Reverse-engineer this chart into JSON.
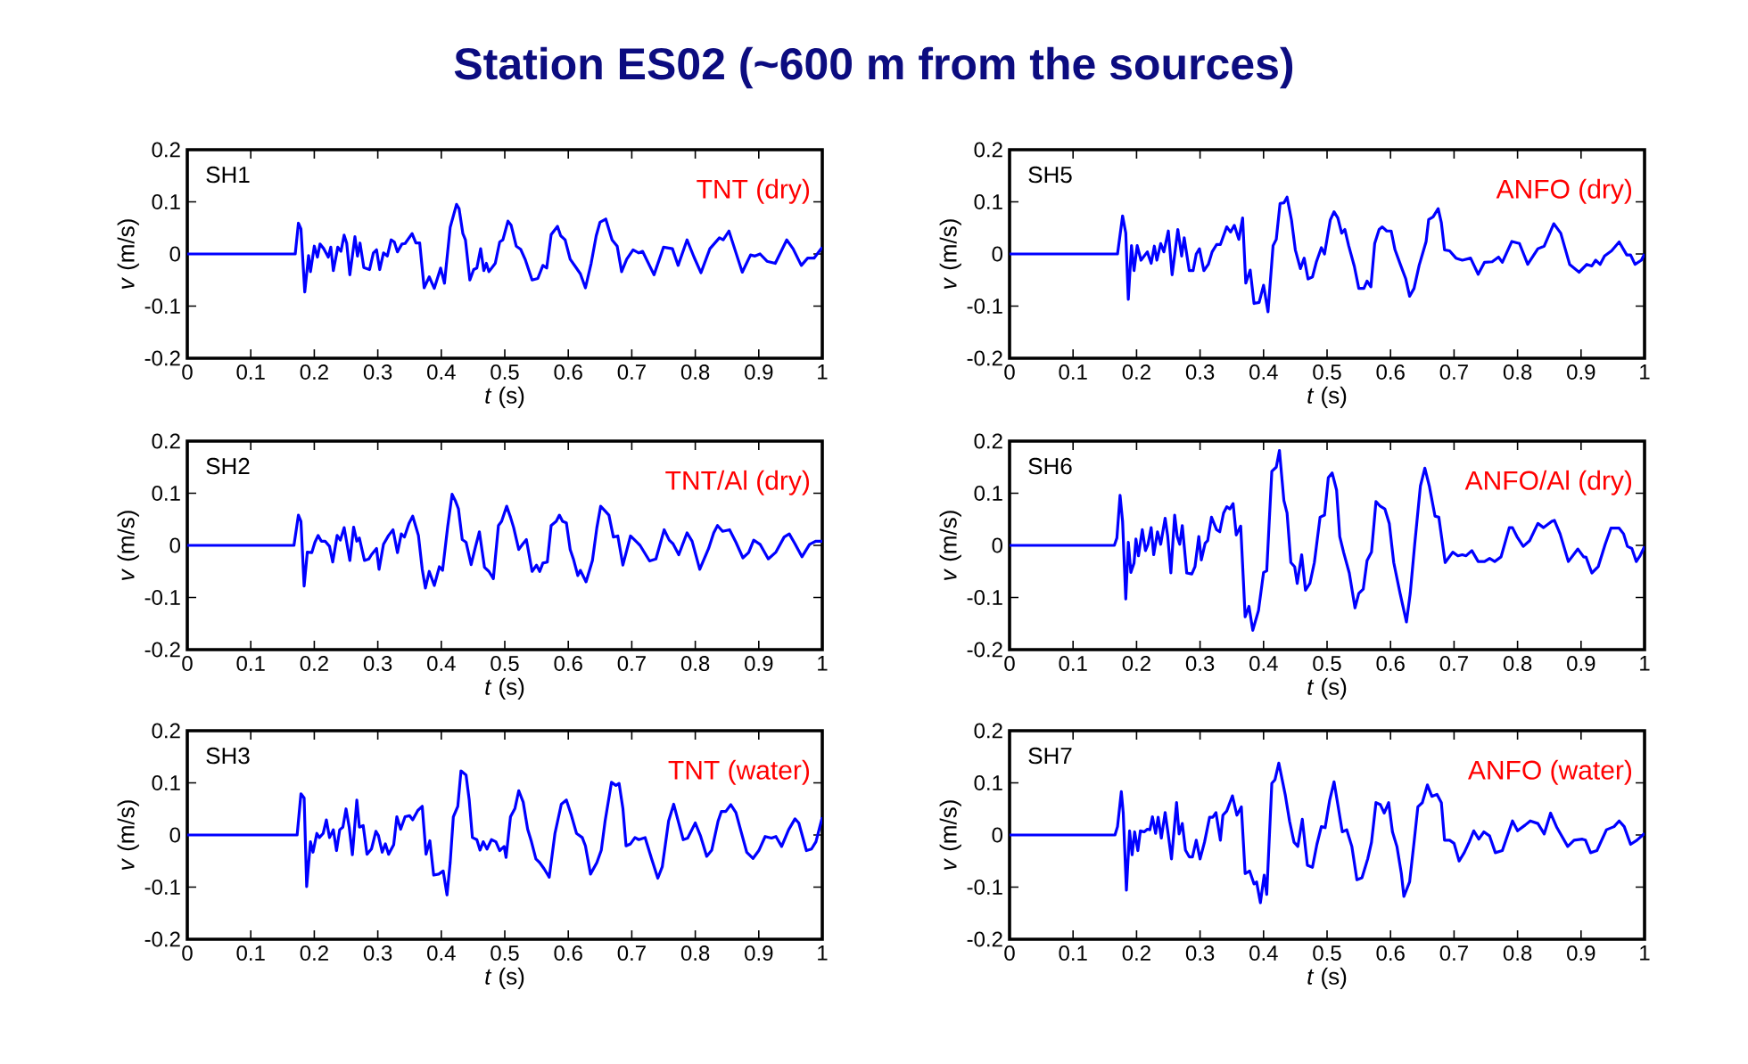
{
  "chart_data": [
    {
      "type": "other",
      "title": "Station ES02 (~600 m from the sources)"
    },
    {
      "type": "line",
      "xlabel": "*t* (s)",
      "ylabel": "*v* (m/s)",
      "annotations": [
        "SH1",
        "TNT (dry)"
      ],
      "xlim": [
        0,
        1
      ],
      "ylim": [
        -0.2,
        0.2
      ],
      "xticks": [
        0,
        0.1,
        0.2,
        0.3,
        0.4,
        0.5,
        0.6,
        0.7,
        0.8,
        0.9,
        1
      ],
      "yticks": [
        -0.2,
        -0.1,
        0,
        0.1,
        0.2
      ],
      "series": [
        {
          "color": "#0000ff",
          "x": [
            0,
            0.17,
            0.175,
            0.179,
            0.185,
            0.191,
            0.194,
            0.2,
            0.205,
            0.209,
            0.215,
            0.222,
            0.226,
            0.23,
            0.237,
            0.242,
            0.247,
            0.251,
            0.256,
            0.264,
            0.268,
            0.272,
            0.278,
            0.287,
            0.293,
            0.298,
            0.303,
            0.309,
            0.315,
            0.321,
            0.326,
            0.331,
            0.338,
            0.343,
            0.354,
            0.36,
            0.366,
            0.373,
            0.381,
            0.389,
            0.399,
            0.405,
            0.414,
            0.424,
            0.428,
            0.434,
            0.438,
            0.445,
            0.451,
            0.456,
            0.462,
            0.467,
            0.471,
            0.475,
            0.485,
            0.492,
            0.497,
            0.505,
            0.51,
            0.518,
            0.525,
            0.532,
            0.543,
            0.552,
            0.56,
            0.566,
            0.573,
            0.583,
            0.588,
            0.595,
            0.603,
            0.611,
            0.619,
            0.627,
            0.636,
            0.644,
            0.65,
            0.659,
            0.669,
            0.677,
            0.684,
            0.692,
            0.702,
            0.711,
            0.717,
            0.735,
            0.75,
            0.764,
            0.773,
            0.787,
            0.798,
            0.809,
            0.823,
            0.838,
            0.844,
            0.853,
            0.862,
            0.874,
            0.887,
            0.894,
            0.902,
            0.913,
            0.926,
            0.944,
            0.954,
            0.967,
            0.977,
            0.987,
            1.0
          ],
          "values": [
            0,
            0,
            0.059,
            0.048,
            -0.073,
            -0.003,
            -0.034,
            0.015,
            -0.006,
            0.019,
            0.01,
            -0.006,
            0.013,
            -0.032,
            0.013,
            0.005,
            0.036,
            0.021,
            -0.04,
            0.033,
            -0.004,
            0.021,
            -0.026,
            -0.03,
            0.002,
            0.008,
            -0.03,
            0.002,
            -0.004,
            0.027,
            0.023,
            0.004,
            0.019,
            0.02,
            0.039,
            0.021,
            0.021,
            -0.065,
            -0.044,
            -0.066,
            -0.027,
            -0.056,
            0.051,
            0.095,
            0.087,
            0.039,
            0.027,
            -0.05,
            -0.03,
            -0.027,
            0.01,
            -0.032,
            -0.018,
            -0.034,
            -0.018,
            0.023,
            0.027,
            0.063,
            0.055,
            0.015,
            0.009,
            -0.01,
            -0.05,
            -0.047,
            -0.022,
            -0.027,
            0.037,
            0.053,
            0.035,
            0.027,
            -0.01,
            -0.024,
            -0.038,
            -0.065,
            -0.018,
            0.035,
            0.061,
            0.067,
            0.027,
            0.015,
            -0.034,
            -0.01,
            0.008,
            0.002,
            0.005,
            -0.04,
            0.013,
            0.01,
            -0.022,
            0.027,
            -0.006,
            -0.036,
            0.01,
            0.031,
            0.027,
            0.044,
            0.01,
            -0.035,
            -0.002,
            -0.004,
            0.0,
            -0.014,
            -0.018,
            0.027,
            0.01,
            -0.022,
            -0.008,
            -0.008,
            0.013
          ]
        }
      ]
    },
    {
      "type": "line",
      "xlabel": "*t* (s)",
      "ylabel": "*v* (m/s)",
      "annotations": [
        "SH5",
        "ANFO (dry)"
      ],
      "xlim": [
        0,
        1
      ],
      "ylim": [
        -0.2,
        0.2
      ],
      "xticks": [
        0,
        0.1,
        0.2,
        0.3,
        0.4,
        0.5,
        0.6,
        0.7,
        0.8,
        0.9,
        1
      ],
      "yticks": [
        -0.2,
        -0.1,
        0,
        0.1,
        0.2
      ],
      "series": [
        {
          "color": "#0000ff",
          "x": [
            0,
            0.17,
            0.178,
            0.183,
            0.187,
            0.192,
            0.196,
            0.201,
            0.207,
            0.217,
            0.223,
            0.228,
            0.232,
            0.238,
            0.243,
            0.25,
            0.256,
            0.265,
            0.271,
            0.275,
            0.283,
            0.289,
            0.294,
            0.299,
            0.306,
            0.313,
            0.319,
            0.326,
            0.332,
            0.342,
            0.348,
            0.354,
            0.361,
            0.367,
            0.372,
            0.379,
            0.385,
            0.393,
            0.4,
            0.407,
            0.415,
            0.42,
            0.426,
            0.432,
            0.437,
            0.444,
            0.45,
            0.458,
            0.464,
            0.47,
            0.477,
            0.483,
            0.491,
            0.496,
            0.505,
            0.511,
            0.517,
            0.523,
            0.528,
            0.534,
            0.543,
            0.55,
            0.558,
            0.563,
            0.569,
            0.575,
            0.582,
            0.587,
            0.594,
            0.601,
            0.607,
            0.616,
            0.624,
            0.63,
            0.637,
            0.645,
            0.656,
            0.66,
            0.667,
            0.675,
            0.68,
            0.685,
            0.693,
            0.703,
            0.713,
            0.726,
            0.738,
            0.748,
            0.76,
            0.77,
            0.776,
            0.791,
            0.803,
            0.816,
            0.832,
            0.842,
            0.857,
            0.868,
            0.882,
            0.897,
            0.909,
            0.917,
            0.923,
            0.93,
            0.937,
            0.948,
            0.96,
            0.972,
            0.978,
            0.985,
            0.995,
            1.0
          ],
          "values": [
            0,
            0,
            0.073,
            0.04,
            -0.087,
            0.016,
            -0.032,
            0.016,
            -0.012,
            0.004,
            -0.018,
            0.015,
            -0.012,
            0.02,
            0.004,
            0.044,
            -0.04,
            0.047,
            -0.004,
            0.031,
            -0.032,
            -0.032,
            0.0,
            0.01,
            -0.032,
            -0.02,
            0.004,
            0.018,
            0.018,
            0.052,
            0.042,
            0.055,
            0.028,
            0.069,
            -0.056,
            -0.031,
            -0.095,
            -0.093,
            -0.06,
            -0.111,
            0.016,
            0.028,
            0.097,
            0.098,
            0.109,
            0.065,
            0.008,
            -0.028,
            -0.008,
            -0.048,
            -0.044,
            -0.016,
            0.012,
            0.0,
            0.065,
            0.081,
            0.069,
            0.04,
            0.047,
            0.016,
            -0.024,
            -0.066,
            -0.066,
            -0.052,
            -0.063,
            0.02,
            0.047,
            0.052,
            0.044,
            0.044,
            0.008,
            -0.022,
            -0.048,
            -0.081,
            -0.066,
            -0.022,
            0.024,
            0.066,
            0.071,
            0.087,
            0.06,
            0.008,
            0.006,
            -0.008,
            -0.012,
            -0.008,
            -0.039,
            -0.016,
            -0.015,
            -0.006,
            -0.016,
            0.024,
            0.02,
            -0.02,
            0.01,
            0.015,
            0.058,
            0.04,
            -0.02,
            -0.035,
            -0.02,
            -0.023,
            -0.012,
            -0.02,
            -0.004,
            0.006,
            0.023,
            -0.002,
            -0.002,
            -0.02,
            -0.012,
            0.0
          ]
        }
      ]
    },
    {
      "type": "line",
      "xlabel": "*t* (s)",
      "ylabel": "*v* (m/s)",
      "annotations": [
        "SH2",
        "TNT/Al (dry)"
      ],
      "xlim": [
        0,
        1
      ],
      "ylim": [
        -0.2,
        0.2
      ],
      "xticks": [
        0,
        0.1,
        0.2,
        0.3,
        0.4,
        0.5,
        0.6,
        0.7,
        0.8,
        0.9,
        1
      ],
      "yticks": [
        -0.2,
        -0.1,
        0,
        0.1,
        0.2
      ],
      "series": [
        {
          "color": "#0000ff",
          "x": [
            0,
            0.168,
            0.175,
            0.179,
            0.184,
            0.189,
            0.196,
            0.201,
            0.206,
            0.211,
            0.217,
            0.224,
            0.229,
            0.236,
            0.241,
            0.247,
            0.256,
            0.262,
            0.267,
            0.271,
            0.279,
            0.286,
            0.29,
            0.298,
            0.302,
            0.309,
            0.317,
            0.324,
            0.331,
            0.337,
            0.342,
            0.349,
            0.355,
            0.364,
            0.37,
            0.375,
            0.381,
            0.389,
            0.397,
            0.402,
            0.41,
            0.417,
            0.422,
            0.427,
            0.433,
            0.439,
            0.447,
            0.454,
            0.46,
            0.468,
            0.475,
            0.482,
            0.49,
            0.495,
            0.503,
            0.509,
            0.514,
            0.522,
            0.528,
            0.534,
            0.543,
            0.55,
            0.555,
            0.56,
            0.567,
            0.573,
            0.581,
            0.586,
            0.591,
            0.597,
            0.603,
            0.608,
            0.615,
            0.619,
            0.628,
            0.638,
            0.645,
            0.651,
            0.658,
            0.664,
            0.671,
            0.678,
            0.686,
            0.698,
            0.708,
            0.713,
            0.728,
            0.738,
            0.751,
            0.759,
            0.765,
            0.774,
            0.787,
            0.795,
            0.807,
            0.821,
            0.829,
            0.835,
            0.843,
            0.854,
            0.864,
            0.875,
            0.884,
            0.892,
            0.902,
            0.915,
            0.927,
            0.94,
            0.948,
            0.957,
            0.968,
            0.98,
            0.99,
            1.0
          ],
          "values": [
            0,
            0,
            0.058,
            0.046,
            -0.078,
            -0.013,
            -0.014,
            0.006,
            0.019,
            0.008,
            0.008,
            -0.002,
            -0.032,
            0.019,
            0.01,
            0.034,
            -0.029,
            0.035,
            0.008,
            0.014,
            -0.029,
            -0.026,
            -0.018,
            -0.006,
            -0.046,
            0.002,
            0.019,
            0.03,
            -0.014,
            0.022,
            0.016,
            0.042,
            0.056,
            0.019,
            -0.046,
            -0.082,
            -0.05,
            -0.077,
            -0.041,
            -0.048,
            0.035,
            0.098,
            0.086,
            0.07,
            0.011,
            0.006,
            -0.037,
            -0.002,
            0.026,
            -0.042,
            -0.05,
            -0.064,
            0.038,
            0.046,
            0.075,
            0.054,
            0.034,
            -0.008,
            0.002,
            0.011,
            -0.05,
            -0.038,
            -0.05,
            -0.034,
            -0.032,
            0.038,
            0.046,
            0.058,
            0.046,
            0.043,
            -0.008,
            -0.026,
            -0.058,
            -0.048,
            -0.07,
            -0.029,
            0.034,
            0.075,
            0.066,
            0.058,
            0.016,
            0.018,
            -0.038,
            0.018,
            0.006,
            0.0,
            -0.03,
            -0.026,
            0.03,
            0.01,
            0.003,
            -0.018,
            0.024,
            0.008,
            -0.046,
            -0.006,
            0.024,
            0.038,
            0.027,
            0.03,
            0.006,
            -0.024,
            -0.014,
            0.01,
            0.002,
            -0.026,
            -0.013,
            0.016,
            0.022,
            0.003,
            -0.022,
            0.002,
            0.008,
            0.008
          ]
        }
      ]
    },
    {
      "type": "line",
      "xlabel": "*t* (s)",
      "ylabel": "*v* (m/s)",
      "annotations": [
        "SH6",
        "ANFO/Al (dry)"
      ],
      "xlim": [
        0,
        1
      ],
      "ylim": [
        -0.2,
        0.2
      ],
      "xticks": [
        0,
        0.1,
        0.2,
        0.3,
        0.4,
        0.5,
        0.6,
        0.7,
        0.8,
        0.9,
        1
      ],
      "yticks": [
        -0.2,
        -0.1,
        0,
        0.1,
        0.2
      ],
      "series": [
        {
          "color": "#0000ff",
          "x": [
            0,
            0.165,
            0.169,
            0.174,
            0.178,
            0.183,
            0.187,
            0.191,
            0.196,
            0.199,
            0.203,
            0.209,
            0.214,
            0.218,
            0.223,
            0.227,
            0.233,
            0.238,
            0.245,
            0.249,
            0.254,
            0.26,
            0.264,
            0.268,
            0.272,
            0.279,
            0.287,
            0.292,
            0.298,
            0.302,
            0.308,
            0.312,
            0.318,
            0.326,
            0.331,
            0.337,
            0.342,
            0.347,
            0.352,
            0.357,
            0.364,
            0.371,
            0.377,
            0.383,
            0.392,
            0.4,
            0.405,
            0.413,
            0.42,
            0.425,
            0.432,
            0.437,
            0.443,
            0.449,
            0.453,
            0.46,
            0.466,
            0.473,
            0.48,
            0.489,
            0.496,
            0.502,
            0.508,
            0.515,
            0.52,
            0.526,
            0.535,
            0.544,
            0.55,
            0.557,
            0.563,
            0.57,
            0.577,
            0.583,
            0.591,
            0.598,
            0.605,
            0.615,
            0.625,
            0.631,
            0.638,
            0.647,
            0.654,
            0.661,
            0.67,
            0.676,
            0.686,
            0.698,
            0.706,
            0.713,
            0.719,
            0.728,
            0.738,
            0.748,
            0.756,
            0.764,
            0.774,
            0.787,
            0.792,
            0.799,
            0.809,
            0.819,
            0.832,
            0.841,
            0.854,
            0.858,
            0.867,
            0.88,
            0.895,
            0.904,
            0.908,
            0.917,
            0.927,
            0.938,
            0.947,
            0.96,
            0.967,
            0.973,
            0.98,
            0.987,
            0.993,
            1.0
          ],
          "values": [
            0,
            0,
            0.014,
            0.096,
            0.046,
            -0.103,
            0.006,
            -0.052,
            -0.034,
            0.012,
            -0.02,
            0.03,
            -0.01,
            0.002,
            0.034,
            -0.018,
            0.026,
            0.002,
            0.052,
            0.018,
            -0.053,
            0.058,
            0.017,
            0.002,
            0.038,
            -0.053,
            -0.055,
            -0.041,
            0.017,
            -0.028,
            0.004,
            0.009,
            0.054,
            0.03,
            0.026,
            0.062,
            0.074,
            0.07,
            0.08,
            0.02,
            0.037,
            -0.137,
            -0.117,
            -0.163,
            -0.125,
            -0.052,
            -0.049,
            0.142,
            0.15,
            0.182,
            0.086,
            0.062,
            -0.033,
            -0.041,
            -0.073,
            -0.018,
            -0.086,
            -0.073,
            -0.033,
            0.054,
            0.058,
            0.13,
            0.139,
            0.106,
            0.017,
            -0.013,
            -0.053,
            -0.12,
            -0.092,
            -0.084,
            -0.029,
            -0.013,
            0.084,
            0.076,
            0.07,
            0.042,
            -0.033,
            -0.092,
            -0.147,
            -0.092,
            0.002,
            0.114,
            0.148,
            0.114,
            0.056,
            0.054,
            -0.033,
            -0.013,
            -0.02,
            -0.018,
            -0.02,
            -0.01,
            -0.031,
            -0.031,
            -0.025,
            -0.031,
            -0.022,
            0.034,
            0.034,
            0.017,
            -0.002,
            0.009,
            0.042,
            0.034,
            0.046,
            0.048,
            0.022,
            -0.031,
            -0.007,
            -0.022,
            -0.023,
            -0.053,
            -0.041,
            0.002,
            0.033,
            0.033,
            0.022,
            -0.002,
            -0.006,
            -0.031,
            -0.02,
            -0.002
          ]
        }
      ]
    },
    {
      "type": "line",
      "xlabel": "*t* (s)",
      "ylabel": "*v* (m/s)",
      "annotations": [
        "SH3",
        "TNT (water)"
      ],
      "xlim": [
        0,
        1
      ],
      "ylim": [
        -0.2,
        0.2
      ],
      "xticks": [
        0,
        0.1,
        0.2,
        0.3,
        0.4,
        0.5,
        0.6,
        0.7,
        0.8,
        0.9,
        1
      ],
      "yticks": [
        -0.2,
        -0.1,
        0,
        0.1,
        0.2
      ],
      "series": [
        {
          "color": "#0000ff",
          "x": [
            0,
            0.173,
            0.179,
            0.184,
            0.188,
            0.194,
            0.198,
            0.204,
            0.208,
            0.214,
            0.219,
            0.224,
            0.23,
            0.235,
            0.24,
            0.245,
            0.25,
            0.255,
            0.26,
            0.267,
            0.271,
            0.277,
            0.283,
            0.29,
            0.297,
            0.301,
            0.307,
            0.312,
            0.317,
            0.325,
            0.33,
            0.336,
            0.343,
            0.35,
            0.355,
            0.363,
            0.37,
            0.376,
            0.382,
            0.388,
            0.396,
            0.403,
            0.409,
            0.414,
            0.419,
            0.426,
            0.431,
            0.439,
            0.444,
            0.449,
            0.456,
            0.461,
            0.466,
            0.472,
            0.479,
            0.486,
            0.492,
            0.499,
            0.502,
            0.509,
            0.516,
            0.522,
            0.529,
            0.536,
            0.542,
            0.549,
            0.555,
            0.562,
            0.57,
            0.579,
            0.589,
            0.597,
            0.605,
            0.613,
            0.622,
            0.627,
            0.635,
            0.645,
            0.652,
            0.658,
            0.668,
            0.675,
            0.68,
            0.686,
            0.691,
            0.698,
            0.705,
            0.711,
            0.721,
            0.731,
            0.741,
            0.748,
            0.758,
            0.766,
            0.773,
            0.781,
            0.788,
            0.8,
            0.808,
            0.818,
            0.826,
            0.836,
            0.841,
            0.848,
            0.856,
            0.864,
            0.872,
            0.881,
            0.891,
            0.9,
            0.91,
            0.92,
            0.927,
            0.936,
            0.947,
            0.957,
            0.963,
            0.975,
            0.983,
            0.99,
            1.0
          ],
          "values": [
            0,
            0,
            0.079,
            0.071,
            -0.099,
            -0.013,
            -0.033,
            0.003,
            -0.005,
            0.003,
            0.029,
            -0.005,
            0.01,
            -0.03,
            0.01,
            0.015,
            0.05,
            0.015,
            -0.038,
            0.067,
            0.015,
            0.018,
            -0.037,
            -0.027,
            0.007,
            -0.001,
            -0.033,
            -0.017,
            -0.037,
            -0.019,
            0.035,
            0.011,
            0.035,
            0.037,
            0.029,
            0.047,
            0.055,
            -0.037,
            -0.011,
            -0.077,
            -0.075,
            -0.069,
            -0.115,
            -0.053,
            0.035,
            0.055,
            0.123,
            0.115,
            0.067,
            -0.005,
            -0.009,
            -0.029,
            -0.013,
            -0.027,
            -0.009,
            -0.013,
            -0.03,
            -0.022,
            -0.043,
            0.035,
            0.051,
            0.085,
            0.063,
            0.011,
            -0.013,
            -0.046,
            -0.053,
            -0.065,
            -0.081,
            0.003,
            0.059,
            0.067,
            0.037,
            0.003,
            -0.005,
            -0.021,
            -0.075,
            -0.053,
            -0.029,
            0.027,
            0.101,
            0.095,
            0.099,
            0.051,
            -0.021,
            -0.017,
            -0.005,
            -0.009,
            -0.005,
            -0.045,
            -0.083,
            -0.061,
            0.027,
            0.059,
            0.027,
            -0.009,
            -0.006,
            0.023,
            -0.001,
            -0.041,
            -0.029,
            0.027,
            0.045,
            0.045,
            0.058,
            0.043,
            0.007,
            -0.033,
            -0.045,
            -0.03,
            -0.003,
            -0.006,
            -0.003,
            -0.022,
            0.01,
            0.031,
            0.023,
            -0.03,
            -0.027,
            -0.013,
            0.034
          ]
        }
      ]
    },
    {
      "type": "line",
      "xlabel": "*t* (s)",
      "ylabel": "*v* (m/s)",
      "annotations": [
        "SH7",
        "ANFO (water)"
      ],
      "xlim": [
        0,
        1
      ],
      "ylim": [
        -0.2,
        0.2
      ],
      "xticks": [
        0,
        0.1,
        0.2,
        0.3,
        0.4,
        0.5,
        0.6,
        0.7,
        0.8,
        0.9,
        1
      ],
      "yticks": [
        -0.2,
        -0.1,
        0,
        0.1,
        0.2
      ],
      "series": [
        {
          "color": "#0000ff",
          "x": [
            0,
            0.166,
            0.17,
            0.176,
            0.179,
            0.184,
            0.189,
            0.193,
            0.197,
            0.202,
            0.206,
            0.212,
            0.217,
            0.221,
            0.225,
            0.23,
            0.234,
            0.239,
            0.245,
            0.25,
            0.255,
            0.263,
            0.267,
            0.272,
            0.277,
            0.283,
            0.288,
            0.294,
            0.3,
            0.307,
            0.315,
            0.32,
            0.325,
            0.332,
            0.336,
            0.342,
            0.351,
            0.358,
            0.365,
            0.371,
            0.378,
            0.385,
            0.389,
            0.395,
            0.401,
            0.405,
            0.413,
            0.418,
            0.424,
            0.434,
            0.441,
            0.448,
            0.454,
            0.461,
            0.469,
            0.477,
            0.484,
            0.491,
            0.497,
            0.504,
            0.511,
            0.517,
            0.524,
            0.531,
            0.539,
            0.547,
            0.555,
            0.564,
            0.57,
            0.577,
            0.584,
            0.59,
            0.597,
            0.603,
            0.61,
            0.617,
            0.621,
            0.63,
            0.637,
            0.643,
            0.65,
            0.658,
            0.665,
            0.673,
            0.68,
            0.685,
            0.693,
            0.7,
            0.708,
            0.716,
            0.724,
            0.731,
            0.739,
            0.747,
            0.756,
            0.765,
            0.776,
            0.792,
            0.8,
            0.812,
            0.82,
            0.832,
            0.842,
            0.852,
            0.862,
            0.879,
            0.889,
            0.902,
            0.907,
            0.915,
            0.925,
            0.94,
            0.952,
            0.96,
            0.968,
            0.978,
            0.988,
            1.0
          ],
          "values": [
            0,
            0,
            0.016,
            0.083,
            0.042,
            -0.106,
            0.008,
            -0.038,
            0.006,
            -0.03,
            0.008,
            0.006,
            0.011,
            0.01,
            0.035,
            0.003,
            0.034,
            -0.006,
            0.043,
            0.0,
            -0.046,
            0.062,
            0.002,
            0.022,
            -0.029,
            -0.042,
            -0.042,
            -0.01,
            -0.046,
            -0.014,
            0.034,
            0.034,
            0.043,
            -0.01,
            0.038,
            0.046,
            0.075,
            0.038,
            0.054,
            -0.074,
            -0.069,
            -0.094,
            -0.09,
            -0.13,
            -0.077,
            -0.114,
            0.099,
            0.106,
            0.138,
            0.078,
            0.026,
            -0.014,
            -0.022,
            0.03,
            -0.058,
            -0.062,
            -0.018,
            0.016,
            0.014,
            0.066,
            0.102,
            0.058,
            0.006,
            0.01,
            -0.022,
            -0.086,
            -0.082,
            -0.046,
            -0.014,
            0.062,
            0.058,
            0.042,
            0.062,
            0.006,
            -0.022,
            -0.074,
            -0.118,
            -0.09,
            -0.014,
            0.054,
            0.062,
            0.096,
            0.074,
            0.078,
            0.062,
            -0.01,
            -0.01,
            -0.016,
            -0.05,
            -0.034,
            -0.013,
            0.008,
            -0.008,
            0.006,
            -0.002,
            -0.034,
            -0.03,
            0.027,
            0.008,
            0.019,
            0.027,
            0.022,
            0.002,
            0.042,
            0.014,
            -0.022,
            -0.01,
            -0.008,
            -0.01,
            -0.034,
            -0.03,
            0.01,
            0.016,
            0.027,
            0.016,
            -0.018,
            -0.01,
            0.003
          ]
        }
      ]
    }
  ]
}
